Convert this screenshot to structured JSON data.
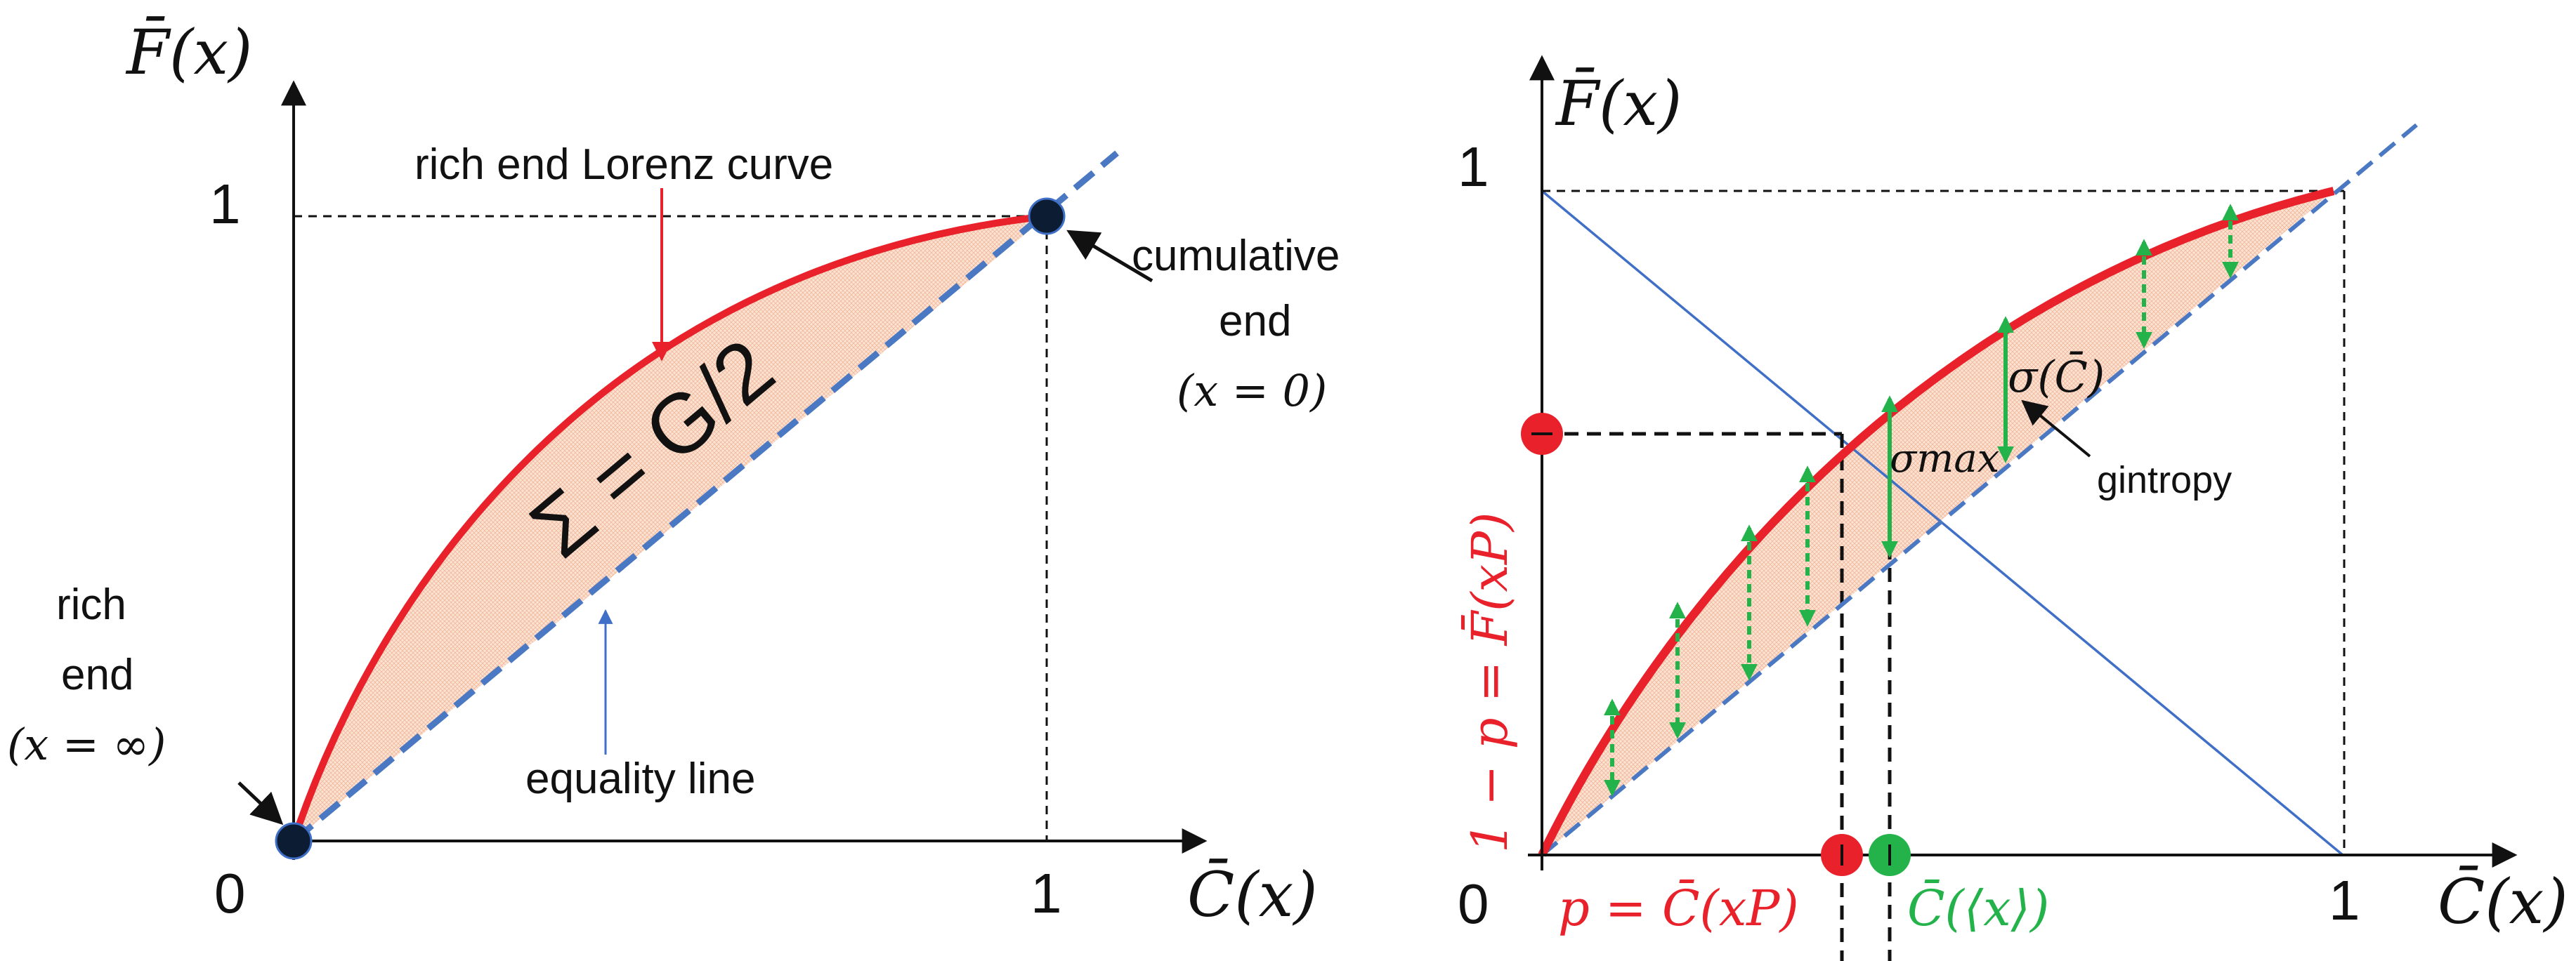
{
  "colors": {
    "curve": "#e8212b",
    "equality": "#4a78c2",
    "fill": "#f6c8a4",
    "arrow_green": "#24b24b",
    "diagonal": "#3f6fc6",
    "axis": "#111111",
    "point_dark": "#0b1c33",
    "point_red": "#e8212b",
    "point_green": "#24b24b"
  },
  "left": {
    "y_axis_label": "F̄(x)",
    "x_axis_label": "C̄(x)",
    "origin": "0",
    "tick_x1": "1",
    "tick_y1": "1",
    "curve_label": "rich end Lorenz curve",
    "area_label": "Σ = G/2",
    "equality_label": "equality line",
    "cum_end": [
      "cumulative",
      "end",
      "(x = 0)"
    ],
    "rich_end": [
      "rich",
      "end",
      "(x = ∞)"
    ]
  },
  "right": {
    "y_axis_label": "F̄(x)",
    "x_axis_label": "C̄(x)",
    "origin": "0",
    "tick_x1": "1",
    "tick_y1": "1",
    "sigma_c": "σ(C̄)",
    "sigma_max": "σmax",
    "gintropy": "gintropy",
    "vertical_label": "1 − p = F̄(xP)",
    "p_label": "p = C̄(xP)",
    "mean_label": "C̄(⟨x⟩)"
  }
}
